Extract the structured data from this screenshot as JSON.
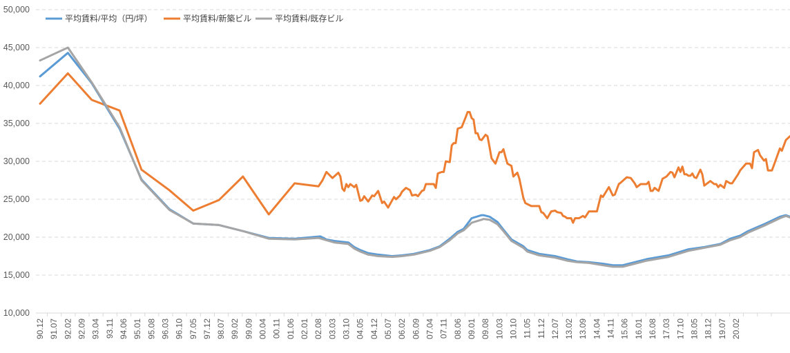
{
  "chart_data": {
    "type": "line",
    "title": "",
    "xlabel": "",
    "ylabel": "",
    "x_unit": "months since 90.12",
    "ylim": [
      10000,
      50000
    ],
    "y_ticks": [
      10000,
      15000,
      20000,
      25000,
      30000,
      35000,
      40000,
      45000,
      50000
    ],
    "y_tick_labels": [
      "10,000",
      "15,000",
      "20,000",
      "25,000",
      "30,000",
      "35,000",
      "40,000",
      "45,000",
      "50,000"
    ],
    "x_tick_step_months": 7,
    "x_tick_labels": [
      "90.12",
      "91.07",
      "92.02",
      "92.09",
      "93.04",
      "93.11",
      "94.06",
      "95.01",
      "95.08",
      "96.03",
      "96.10",
      "97.05",
      "97.12",
      "98.07",
      "99.02",
      "99.09",
      "00.04",
      "00.11",
      "01.06",
      "02.01",
      "02.08",
      "03.03",
      "03.10",
      "04.05",
      "04.12",
      "05.07",
      "06.02",
      "06.09",
      "07.04",
      "07.11",
      "08.06",
      "09.01",
      "09.08",
      "10.03",
      "10.10",
      "11.05",
      "11.12",
      "12.07",
      "13.02",
      "13.09",
      "14.04",
      "14.11",
      "15.06",
      "16.01",
      "16.08",
      "17.03",
      "17.10",
      "18.05",
      "18.12",
      "19.07",
      "20.02"
    ],
    "grid": true,
    "legend_position": "top-left",
    "series": [
      {
        "name": "平均賃料/平均（円/坪）",
        "color": "#5B9BD5",
        "points": [
          [
            0,
            41200
          ],
          [
            14,
            44300
          ],
          [
            26,
            40300
          ],
          [
            40,
            34300
          ],
          [
            51,
            27600
          ],
          [
            65,
            23700
          ],
          [
            77,
            21800
          ],
          [
            90,
            21600
          ],
          [
            102,
            20800
          ],
          [
            115,
            19900
          ],
          [
            128,
            19800
          ],
          [
            141,
            20100
          ],
          [
            144,
            19700
          ],
          [
            148,
            19500
          ],
          [
            155,
            19300
          ],
          [
            158,
            18700
          ],
          [
            161,
            18300
          ],
          [
            165,
            17900
          ],
          [
            170,
            17700
          ],
          [
            177,
            17500
          ],
          [
            182,
            17600
          ],
          [
            188,
            17800
          ],
          [
            196,
            18300
          ],
          [
            201,
            18800
          ],
          [
            206,
            19800
          ],
          [
            210,
            20700
          ],
          [
            213,
            21100
          ],
          [
            217,
            22500
          ],
          [
            222,
            22900
          ],
          [
            223,
            22900
          ],
          [
            226,
            22700
          ],
          [
            230,
            22000
          ],
          [
            233,
            21000
          ],
          [
            237,
            19700
          ],
          [
            243,
            18800
          ],
          [
            245,
            18300
          ],
          [
            251,
            17800
          ],
          [
            259,
            17500
          ],
          [
            265,
            17100
          ],
          [
            270,
            16800
          ],
          [
            276,
            16700
          ],
          [
            283,
            16500
          ],
          [
            288,
            16300
          ],
          [
            293,
            16300
          ],
          [
            299,
            16700
          ],
          [
            305,
            17100
          ],
          [
            316,
            17600
          ],
          [
            326,
            18400
          ],
          [
            334,
            18700
          ],
          [
            342,
            19100
          ],
          [
            347,
            19800
          ],
          [
            352,
            20200
          ],
          [
            356,
            20800
          ],
          [
            364,
            21700
          ],
          [
            372,
            22700
          ],
          [
            375,
            22900
          ],
          [
            377,
            22700
          ]
        ]
      },
      {
        "name": "平均賃料/新築ビル",
        "color": "#ED7D31",
        "points": [
          [
            0,
            37600
          ],
          [
            14,
            41600
          ],
          [
            26,
            38100
          ],
          [
            40,
            36700
          ],
          [
            51,
            28900
          ],
          [
            65,
            26200
          ],
          [
            77,
            23500
          ],
          [
            90,
            24900
          ],
          [
            102,
            28000
          ],
          [
            115,
            23000
          ],
          [
            128,
            27100
          ],
          [
            140,
            26700
          ],
          [
            142,
            27500
          ],
          [
            144,
            28600
          ],
          [
            147,
            27800
          ],
          [
            150,
            28500
          ],
          [
            151,
            28000
          ],
          [
            152,
            26400
          ],
          [
            153,
            26100
          ],
          [
            154,
            27000
          ],
          [
            155,
            26600
          ],
          [
            156,
            27000
          ],
          [
            158,
            26600
          ],
          [
            159,
            26900
          ],
          [
            161,
            24800
          ],
          [
            162,
            24900
          ],
          [
            163,
            25400
          ],
          [
            165,
            24700
          ],
          [
            167,
            25500
          ],
          [
            168,
            25400
          ],
          [
            170,
            26100
          ],
          [
            172,
            24500
          ],
          [
            173,
            24700
          ],
          [
            175,
            23900
          ],
          [
            178,
            25300
          ],
          [
            179,
            25000
          ],
          [
            181,
            25500
          ],
          [
            182,
            26000
          ],
          [
            184,
            26500
          ],
          [
            186,
            26200
          ],
          [
            187,
            25500
          ],
          [
            189,
            25600
          ],
          [
            190,
            25400
          ],
          [
            192,
            26100
          ],
          [
            193,
            26200
          ],
          [
            194,
            27000
          ],
          [
            198,
            27000
          ],
          [
            199,
            26500
          ],
          [
            200,
            28400
          ],
          [
            202,
            28600
          ],
          [
            203,
            28600
          ],
          [
            204,
            30000
          ],
          [
            206,
            29900
          ],
          [
            207,
            32100
          ],
          [
            208,
            32400
          ],
          [
            209,
            32400
          ],
          [
            210,
            34300
          ],
          [
            212,
            34500
          ],
          [
            214,
            35800
          ],
          [
            215,
            36500
          ],
          [
            216,
            36500
          ],
          [
            217,
            35700
          ],
          [
            218,
            35500
          ],
          [
            219,
            33700
          ],
          [
            220,
            33700
          ],
          [
            221,
            32900
          ],
          [
            222,
            32800
          ],
          [
            224,
            33500
          ],
          [
            225,
            33300
          ],
          [
            226,
            31900
          ],
          [
            227,
            30400
          ],
          [
            229,
            29700
          ],
          [
            231,
            31200
          ],
          [
            232,
            31200
          ],
          [
            233,
            31600
          ],
          [
            234,
            30600
          ],
          [
            235,
            29700
          ],
          [
            237,
            29400
          ],
          [
            238,
            28000
          ],
          [
            240,
            28500
          ],
          [
            241,
            27700
          ],
          [
            243,
            25200
          ],
          [
            244,
            24500
          ],
          [
            247,
            24100
          ],
          [
            251,
            24100
          ],
          [
            252,
            23300
          ],
          [
            253,
            23200
          ],
          [
            255,
            22500
          ],
          [
            257,
            23400
          ],
          [
            259,
            23500
          ],
          [
            260,
            23300
          ],
          [
            262,
            23200
          ],
          [
            263,
            22800
          ],
          [
            264,
            22700
          ],
          [
            265,
            22500
          ],
          [
            267,
            22500
          ],
          [
            268,
            21900
          ],
          [
            269,
            22500
          ],
          [
            271,
            22500
          ],
          [
            273,
            22800
          ],
          [
            274,
            22600
          ],
          [
            276,
            23400
          ],
          [
            280,
            23400
          ],
          [
            282,
            25500
          ],
          [
            283,
            25300
          ],
          [
            286,
            26600
          ],
          [
            288,
            25500
          ],
          [
            289,
            25600
          ],
          [
            291,
            27000
          ],
          [
            292,
            27200
          ],
          [
            295,
            27900
          ],
          [
            297,
            27800
          ],
          [
            299,
            27100
          ],
          [
            300,
            26600
          ],
          [
            302,
            27000
          ],
          [
            305,
            27000
          ],
          [
            306,
            27300
          ],
          [
            307,
            26100
          ],
          [
            308,
            26100
          ],
          [
            309,
            26500
          ],
          [
            311,
            26100
          ],
          [
            313,
            27700
          ],
          [
            315,
            28000
          ],
          [
            317,
            28600
          ],
          [
            318,
            28500
          ],
          [
            319,
            27900
          ],
          [
            321,
            29200
          ],
          [
            322,
            28600
          ],
          [
            323,
            29300
          ],
          [
            324,
            28300
          ],
          [
            325,
            28300
          ],
          [
            326,
            28100
          ],
          [
            327,
            28100
          ],
          [
            328,
            28400
          ],
          [
            329,
            27900
          ],
          [
            330,
            27800
          ],
          [
            332,
            28900
          ],
          [
            333,
            28300
          ],
          [
            334,
            26800
          ],
          [
            337,
            27400
          ],
          [
            339,
            27000
          ],
          [
            340,
            27000
          ],
          [
            341,
            26600
          ],
          [
            342,
            26900
          ],
          [
            344,
            26500
          ],
          [
            345,
            27400
          ],
          [
            347,
            27100
          ],
          [
            348,
            27100
          ],
          [
            350,
            27900
          ],
          [
            351,
            28300
          ],
          [
            352,
            28800
          ],
          [
            354,
            29400
          ],
          [
            355,
            29700
          ],
          [
            357,
            29700
          ],
          [
            358,
            29100
          ],
          [
            359,
            31200
          ],
          [
            361,
            31500
          ],
          [
            362,
            30800
          ],
          [
            364,
            30100
          ],
          [
            365,
            30300
          ],
          [
            366,
            28800
          ],
          [
            368,
            28800
          ],
          [
            369,
            29500
          ],
          [
            372,
            31700
          ],
          [
            373,
            31400
          ],
          [
            375,
            32800
          ],
          [
            377,
            33300
          ]
        ]
      },
      {
        "name": "平均賃料/既存ビル",
        "color": "#A5A5A5",
        "points": [
          [
            0,
            43300
          ],
          [
            14,
            45000
          ],
          [
            26,
            40400
          ],
          [
            40,
            34500
          ],
          [
            51,
            27500
          ],
          [
            65,
            23600
          ],
          [
            77,
            21800
          ],
          [
            90,
            21600
          ],
          [
            102,
            20800
          ],
          [
            115,
            19800
          ],
          [
            128,
            19700
          ],
          [
            140,
            19900
          ],
          [
            144,
            19600
          ],
          [
            148,
            19300
          ],
          [
            155,
            19100
          ],
          [
            158,
            18500
          ],
          [
            161,
            18100
          ],
          [
            165,
            17700
          ],
          [
            170,
            17500
          ],
          [
            177,
            17400
          ],
          [
            182,
            17500
          ],
          [
            188,
            17700
          ],
          [
            196,
            18200
          ],
          [
            201,
            18700
          ],
          [
            206,
            19600
          ],
          [
            210,
            20500
          ],
          [
            213,
            20900
          ],
          [
            217,
            21900
          ],
          [
            222,
            22300
          ],
          [
            223,
            22400
          ],
          [
            226,
            22300
          ],
          [
            230,
            21700
          ],
          [
            233,
            20800
          ],
          [
            237,
            19500
          ],
          [
            243,
            18600
          ],
          [
            245,
            18100
          ],
          [
            251,
            17600
          ],
          [
            259,
            17300
          ],
          [
            265,
            16900
          ],
          [
            270,
            16700
          ],
          [
            276,
            16600
          ],
          [
            283,
            16300
          ],
          [
            288,
            16100
          ],
          [
            293,
            16100
          ],
          [
            299,
            16500
          ],
          [
            305,
            16900
          ],
          [
            316,
            17400
          ],
          [
            326,
            18200
          ],
          [
            334,
            18600
          ],
          [
            342,
            19000
          ],
          [
            347,
            19600
          ],
          [
            352,
            20000
          ],
          [
            356,
            20600
          ],
          [
            364,
            21500
          ],
          [
            372,
            22500
          ],
          [
            375,
            22800
          ],
          [
            377,
            22600
          ]
        ]
      }
    ]
  }
}
